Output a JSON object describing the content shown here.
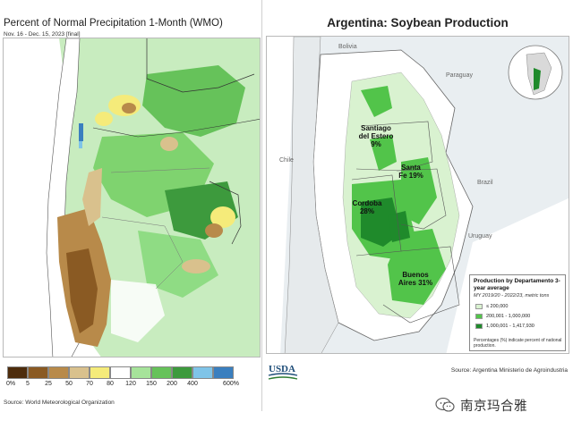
{
  "left": {
    "title": "Percent of Normal Precipitation 1-Month (WMO)",
    "subtitle": "Nov. 16 - Dec. 15, 2023 [final]",
    "legend": {
      "ticks": [
        "0%",
        "5",
        "25",
        "50",
        "70",
        "80",
        "120",
        "150",
        "200",
        "400",
        "600%"
      ],
      "colors": [
        "#4d2c0c",
        "#8a5a23",
        "#b88a4a",
        "#d9c18d",
        "#f5eb7a",
        "#ffffff",
        "#a6e39a",
        "#66c25a",
        "#3d9a3d",
        "#7fc4e8",
        "#3a7fbf"
      ]
    },
    "source": "Source: World Meteorological Organization"
  },
  "right": {
    "title": "Argentina: Soybean Production",
    "map_labels": {
      "bolivia": "Bolivia",
      "paraguay": "Paraguay",
      "brazil": "Brazil",
      "chile": "Chile",
      "uruguay": "Uruguay"
    },
    "provinces": {
      "santiago": "Santiago del Estero 9%",
      "santafe": "Santa Fe 19%",
      "cordoba": "Cordoba 28%",
      "buenosaires": "Buenos Aires 31%"
    },
    "legend": {
      "title": "Production by Departamento 3-year average",
      "unit": "MY 2019/20 - 2022/23, metric tons",
      "items": [
        {
          "label": "≤ 200,000",
          "color": "#d9f2d0"
        },
        {
          "label": "200,001 - 1,000,000",
          "color": "#52c44a"
        },
        {
          "label": "1,000,001 - 1,417,930",
          "color": "#1f8a2b"
        }
      ],
      "note": "Percentages (%) indicate percent of national production."
    },
    "logo_text": "USDA",
    "source": "Source: Argentina Ministerio de Agroindustria"
  },
  "watermark": {
    "text": "南京玛合雅"
  }
}
